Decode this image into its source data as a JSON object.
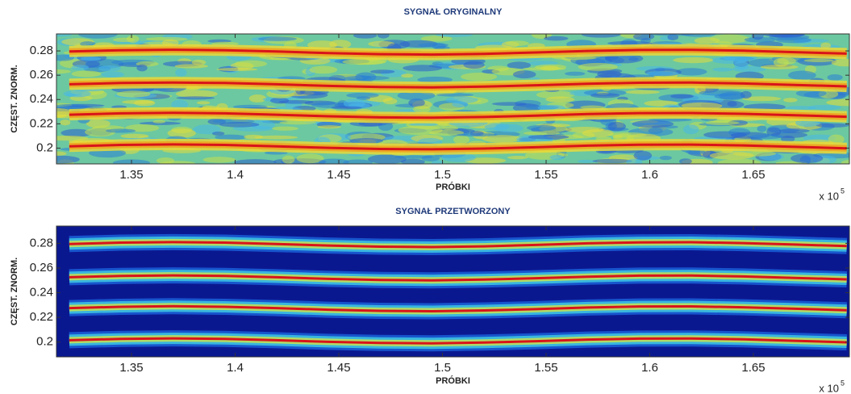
{
  "chart_data": [
    {
      "type": "spectrogram",
      "title": "SYGNAŁ ORYGINALNY",
      "xlabel": "PRÓBKI",
      "ylabel": "CZĘST. ZNORM.",
      "x_multiplier": {
        "base": "x 10",
        "exponent": "5"
      },
      "xlim": [
        131380,
        169630
      ],
      "ylim": [
        0.187,
        0.294
      ],
      "xticks": [
        {
          "value": 135000,
          "label": "1.35"
        },
        {
          "value": 140000,
          "label": "1.4"
        },
        {
          "value": 145000,
          "label": "1.45"
        },
        {
          "value": 150000,
          "label": "1.5"
        },
        {
          "value": 155000,
          "label": "1.55"
        },
        {
          "value": 160000,
          "label": "1.6"
        },
        {
          "value": 165000,
          "label": "1.65"
        }
      ],
      "yticks": [
        0.2,
        0.22,
        0.24,
        0.26,
        0.28
      ],
      "background_color": "#6cc8a0",
      "texture_colors": [
        "#2a7fd6",
        "#49b8e8",
        "#c8e04a",
        "#e6dc3a",
        "#2a5fd0"
      ],
      "band_colors": [
        "#e8d83a",
        "#f0a020"
      ],
      "x": [
        132000,
        134500,
        137000,
        139500,
        142000,
        144500,
        147000,
        149500,
        152000,
        154500,
        157000,
        159500,
        162000,
        164500,
        167000,
        169500
      ],
      "series": [
        {
          "color": "#d8141a",
          "values": [
            0.2015,
            0.2026,
            0.203,
            0.2026,
            0.2015,
            0.2002,
            0.1993,
            0.199,
            0.1996,
            0.2007,
            0.202,
            0.2028,
            0.2029,
            0.2022,
            0.201,
            0.1998
          ]
        },
        {
          "color": "#d8141a",
          "values": [
            0.2275,
            0.2286,
            0.229,
            0.2286,
            0.2275,
            0.2262,
            0.2253,
            0.225,
            0.2256,
            0.2267,
            0.228,
            0.2288,
            0.2289,
            0.2282,
            0.227,
            0.2258
          ]
        },
        {
          "color": "#d8141a",
          "values": [
            0.2525,
            0.2536,
            0.254,
            0.2536,
            0.2525,
            0.2512,
            0.2503,
            0.25,
            0.2506,
            0.2517,
            0.253,
            0.2538,
            0.2539,
            0.2532,
            0.252,
            0.2508
          ]
        },
        {
          "color": "#d8141a",
          "values": [
            0.2795,
            0.2806,
            0.281,
            0.2806,
            0.2795,
            0.2782,
            0.2773,
            0.277,
            0.2776,
            0.2787,
            0.28,
            0.2808,
            0.2809,
            0.2802,
            0.279,
            0.2778
          ]
        }
      ]
    },
    {
      "type": "spectrogram",
      "title": "SYGNAŁ PRZETWORZONY",
      "xlabel": "PRÓBKI",
      "ylabel": "CZĘST. ZNORM.",
      "x_multiplier": {
        "base": "x 10",
        "exponent": "5"
      },
      "xlim": [
        131380,
        169630
      ],
      "ylim": [
        0.188,
        0.294
      ],
      "xticks": [
        {
          "value": 135000,
          "label": "1.35"
        },
        {
          "value": 140000,
          "label": "1.4"
        },
        {
          "value": 145000,
          "label": "1.45"
        },
        {
          "value": 150000,
          "label": "1.5"
        },
        {
          "value": 155000,
          "label": "1.55"
        },
        {
          "value": 160000,
          "label": "1.6"
        },
        {
          "value": 165000,
          "label": "1.65"
        }
      ],
      "yticks": [
        0.2,
        0.22,
        0.24,
        0.26,
        0.28
      ],
      "background_color": "#0a1890",
      "texture_colors": [],
      "band_colors": [
        "#1a60d8",
        "#40c8e0",
        "#c8e050"
      ],
      "x": [
        132000,
        134500,
        137000,
        139500,
        142000,
        144500,
        147000,
        149500,
        152000,
        154500,
        157000,
        159500,
        162000,
        164500,
        167000,
        169500
      ],
      "series": [
        {
          "color": "#d8141a",
          "values": [
            0.2015,
            0.2026,
            0.203,
            0.2026,
            0.2015,
            0.2002,
            0.1993,
            0.199,
            0.1996,
            0.2007,
            0.202,
            0.2028,
            0.2029,
            0.2022,
            0.201,
            0.1998
          ]
        },
        {
          "color": "#d8141a",
          "values": [
            0.2275,
            0.2286,
            0.229,
            0.2286,
            0.2275,
            0.2262,
            0.2253,
            0.225,
            0.2256,
            0.2267,
            0.228,
            0.2288,
            0.2289,
            0.2282,
            0.227,
            0.2258
          ]
        },
        {
          "color": "#d8141a",
          "values": [
            0.2525,
            0.2536,
            0.254,
            0.2536,
            0.2525,
            0.2512,
            0.2503,
            0.25,
            0.2506,
            0.2517,
            0.253,
            0.2538,
            0.2539,
            0.2532,
            0.252,
            0.2508
          ]
        },
        {
          "color": "#d8141a",
          "values": [
            0.2795,
            0.2806,
            0.281,
            0.2806,
            0.2795,
            0.2782,
            0.2773,
            0.277,
            0.2776,
            0.2787,
            0.28,
            0.2808,
            0.2809,
            0.2802,
            0.279,
            0.2778
          ]
        }
      ]
    }
  ]
}
